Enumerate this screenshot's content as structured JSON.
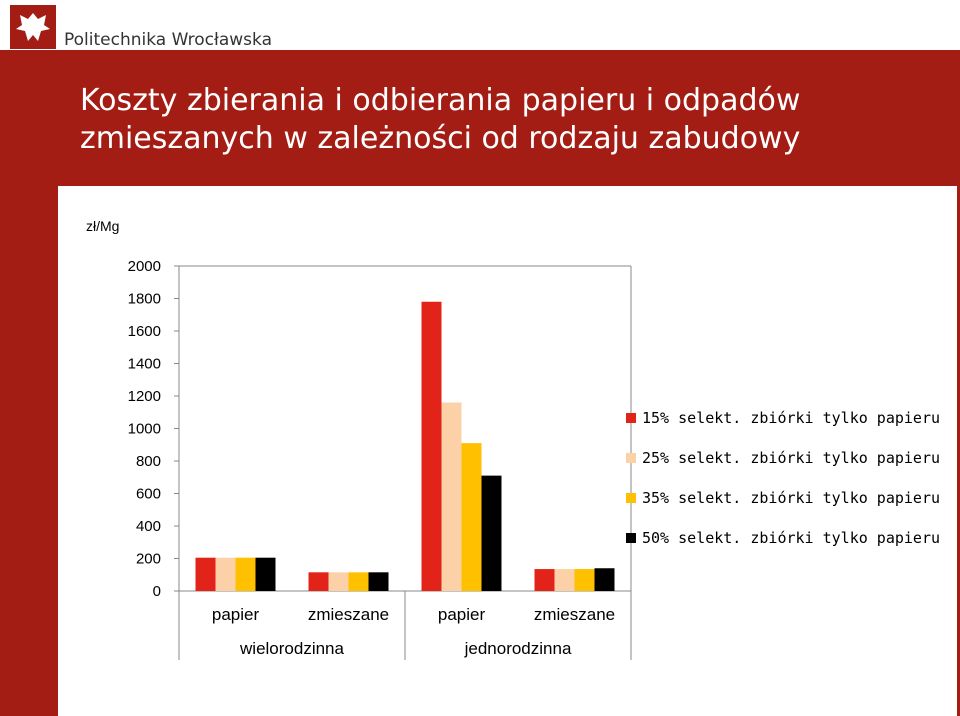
{
  "header": {
    "logo_text": "Politechnika Wrocławska",
    "title": "Koszty zbierania i odbierania papieru i odpadów zmieszanych w zależności od rodzaju zabudowy"
  },
  "colors": {
    "brand": "#a31d14",
    "series": [
      "#e2231a",
      "#fdd1a8",
      "#ffc000",
      "#000000"
    ]
  },
  "chart_data": {
    "type": "bar",
    "unit_label": "zł/Mg",
    "categories": [
      "papier",
      "zmieszane",
      "papier",
      "zmieszane"
    ],
    "groups": [
      {
        "label": "wielorodzinna",
        "categories": [
          "papier",
          "zmieszane"
        ]
      },
      {
        "label": "jednorodzinna",
        "categories": [
          "papier",
          "zmieszane"
        ]
      }
    ],
    "series": [
      {
        "name": "15% selekt. zbiórki tylko papieru",
        "values": [
          205,
          115,
          1780,
          135
        ]
      },
      {
        "name": "25% selekt. zbiórki tylko papieru",
        "values": [
          205,
          115,
          1160,
          135
        ]
      },
      {
        "name": "35% selekt. zbiórki tylko papieru",
        "values": [
          205,
          115,
          910,
          135
        ]
      },
      {
        "name": "50% selekt. zbiórki tylko papieru",
        "values": [
          205,
          115,
          710,
          140
        ]
      }
    ],
    "yticks": [
      "0",
      "200",
      "400",
      "600",
      "800",
      "1000",
      "1200",
      "1400",
      "1600",
      "1800",
      "2000"
    ],
    "ylim": [
      0,
      2000
    ],
    "grid": false,
    "legend": "right"
  }
}
